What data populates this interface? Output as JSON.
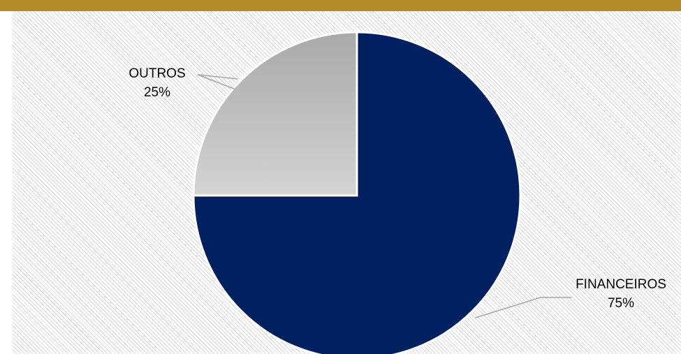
{
  "colors": {
    "header_bar": "#B58B25",
    "financeiros": "#002060",
    "outros_light": "#d4d4d4",
    "outros_dark": "#a9a9a9",
    "leader_line": "#a6a6a6"
  },
  "chart_data": {
    "type": "pie",
    "categories": [
      "OUTROS",
      "FINANCEIROS"
    ],
    "values": [
      25,
      75
    ],
    "labels": [
      {
        "name": "OUTROS",
        "pct": "25%"
      },
      {
        "name": "FINANCEIROS",
        "pct": "75%"
      }
    ],
    "start": "12 o'clock",
    "direction": "clockwise",
    "legend": "none",
    "data_labels": "outside with leader lines"
  }
}
